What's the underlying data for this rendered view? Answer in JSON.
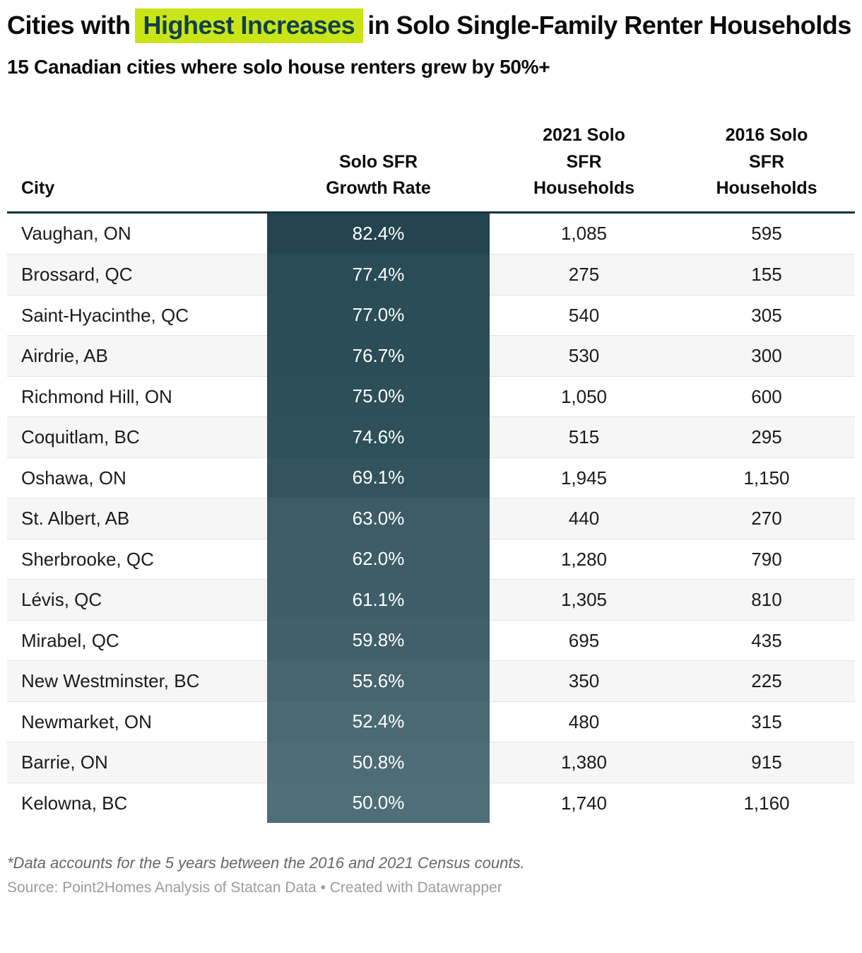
{
  "title": {
    "prefix": "Cities with",
    "highlight": "Highest Increases",
    "suffix": "in Solo Single-Family Renter Households"
  },
  "subtitle": "15 Canadian cities where solo house renters grew by 50%+",
  "colors": {
    "highlight_bg": "#c9e515",
    "highlight_text": "#11404d",
    "header_border": "#15333d",
    "stripe": "#f6f6f6",
    "row_line": "#e3e3e3",
    "scale_dark": "#24454f",
    "scale_light": "#4f6e78"
  },
  "table": {
    "headers": [
      "City",
      "Solo SFR\nGrowth Rate",
      "2021 Solo\nSFR\nHouseholds",
      "2016 Solo\nSFR\nHouseholds"
    ],
    "rows": [
      {
        "city": "Vaughan, ON",
        "growth": "82.4%",
        "h2021": "1,085",
        "h2016": "595",
        "color": "#24454f"
      },
      {
        "city": "Brossard, QC",
        "growth": "77.4%",
        "h2021": "275",
        "h2016": "155",
        "color": "#294c56"
      },
      {
        "city": "Saint-Hyacinthe, QC",
        "growth": "77.0%",
        "h2021": "540",
        "h2016": "305",
        "color": "#2a4d57"
      },
      {
        "city": "Airdrie, AB",
        "growth": "76.7%",
        "h2021": "530",
        "h2016": "300",
        "color": "#2a4d57"
      },
      {
        "city": "Richmond Hill, ON",
        "growth": "75.0%",
        "h2021": "1,050",
        "h2016": "600",
        "color": "#2c4f59"
      },
      {
        "city": "Coquitlam, BC",
        "growth": "74.6%",
        "h2021": "515",
        "h2016": "295",
        "color": "#2d505a"
      },
      {
        "city": "Oshawa, ON",
        "growth": "69.1%",
        "h2021": "1,945",
        "h2016": "1,150",
        "color": "#33545f"
      },
      {
        "city": "St. Albert, AB",
        "growth": "63.0%",
        "h2021": "440",
        "h2016": "270",
        "color": "#3d5c66"
      },
      {
        "city": "Sherbrooke, QC",
        "growth": "62.0%",
        "h2021": "1,280",
        "h2016": "790",
        "color": "#3e5d67"
      },
      {
        "city": "Lévis, QC",
        "growth": "61.1%",
        "h2021": "1,305",
        "h2016": "810",
        "color": "#3f5e68"
      },
      {
        "city": "Mirabel, QC",
        "growth": "59.8%",
        "h2021": "695",
        "h2016": "435",
        "color": "#41606a"
      },
      {
        "city": "New Westminster, BC",
        "growth": "55.6%",
        "h2021": "350",
        "h2016": "225",
        "color": "#47656f"
      },
      {
        "city": "Newmarket, ON",
        "growth": "52.4%",
        "h2021": "480",
        "h2016": "315",
        "color": "#4c6a74"
      },
      {
        "city": "Barrie, ON",
        "growth": "50.8%",
        "h2021": "1,380",
        "h2016": "915",
        "color": "#4e6c76"
      },
      {
        "city": "Kelowna, BC",
        "growth": "50.0%",
        "h2021": "1,740",
        "h2016": "1,160",
        "color": "#4f6e78"
      }
    ]
  },
  "footer": {
    "note": "*Data accounts for the 5 years between the 2016 and 2021 Census counts.",
    "source": "Source: Point2Homes Analysis of Statcan Data • Created with Datawrapper"
  },
  "chart_data": {
    "type": "table",
    "title": "Cities with Highest Increases in Solo Single-Family Renter Households",
    "subtitle": "15 Canadian cities where solo house renters grew by 50%+",
    "columns": [
      "City",
      "Solo SFR Growth Rate (%)",
      "2021 Solo SFR Households",
      "2016 Solo SFR Households"
    ],
    "rows": [
      [
        "Vaughan, ON",
        82.4,
        1085,
        595
      ],
      [
        "Brossard, QC",
        77.4,
        275,
        155
      ],
      [
        "Saint-Hyacinthe, QC",
        77.0,
        540,
        305
      ],
      [
        "Airdrie, AB",
        76.7,
        530,
        300
      ],
      [
        "Richmond Hill, ON",
        75.0,
        1050,
        600
      ],
      [
        "Coquitlam, BC",
        74.6,
        515,
        295
      ],
      [
        "Oshawa, ON",
        69.1,
        1945,
        1150
      ],
      [
        "St. Albert, AB",
        63.0,
        440,
        270
      ],
      [
        "Sherbrooke, QC",
        62.0,
        1280,
        790
      ],
      [
        "Lévis, QC",
        61.1,
        1305,
        810
      ],
      [
        "Mirabel, QC",
        59.8,
        695,
        435
      ],
      [
        "New Westminster, BC",
        55.6,
        350,
        225
      ],
      [
        "Newmarket, ON",
        52.4,
        480,
        315
      ],
      [
        "Barrie, ON",
        50.8,
        1380,
        915
      ],
      [
        "Kelowna, BC",
        50.0,
        1740,
        1160
      ]
    ],
    "heatmap_column": "Solo SFR Growth Rate",
    "heatmap_range": [
      50.0,
      82.4
    ],
    "heatmap_colors": [
      "#4f6e78",
      "#24454f"
    ]
  }
}
